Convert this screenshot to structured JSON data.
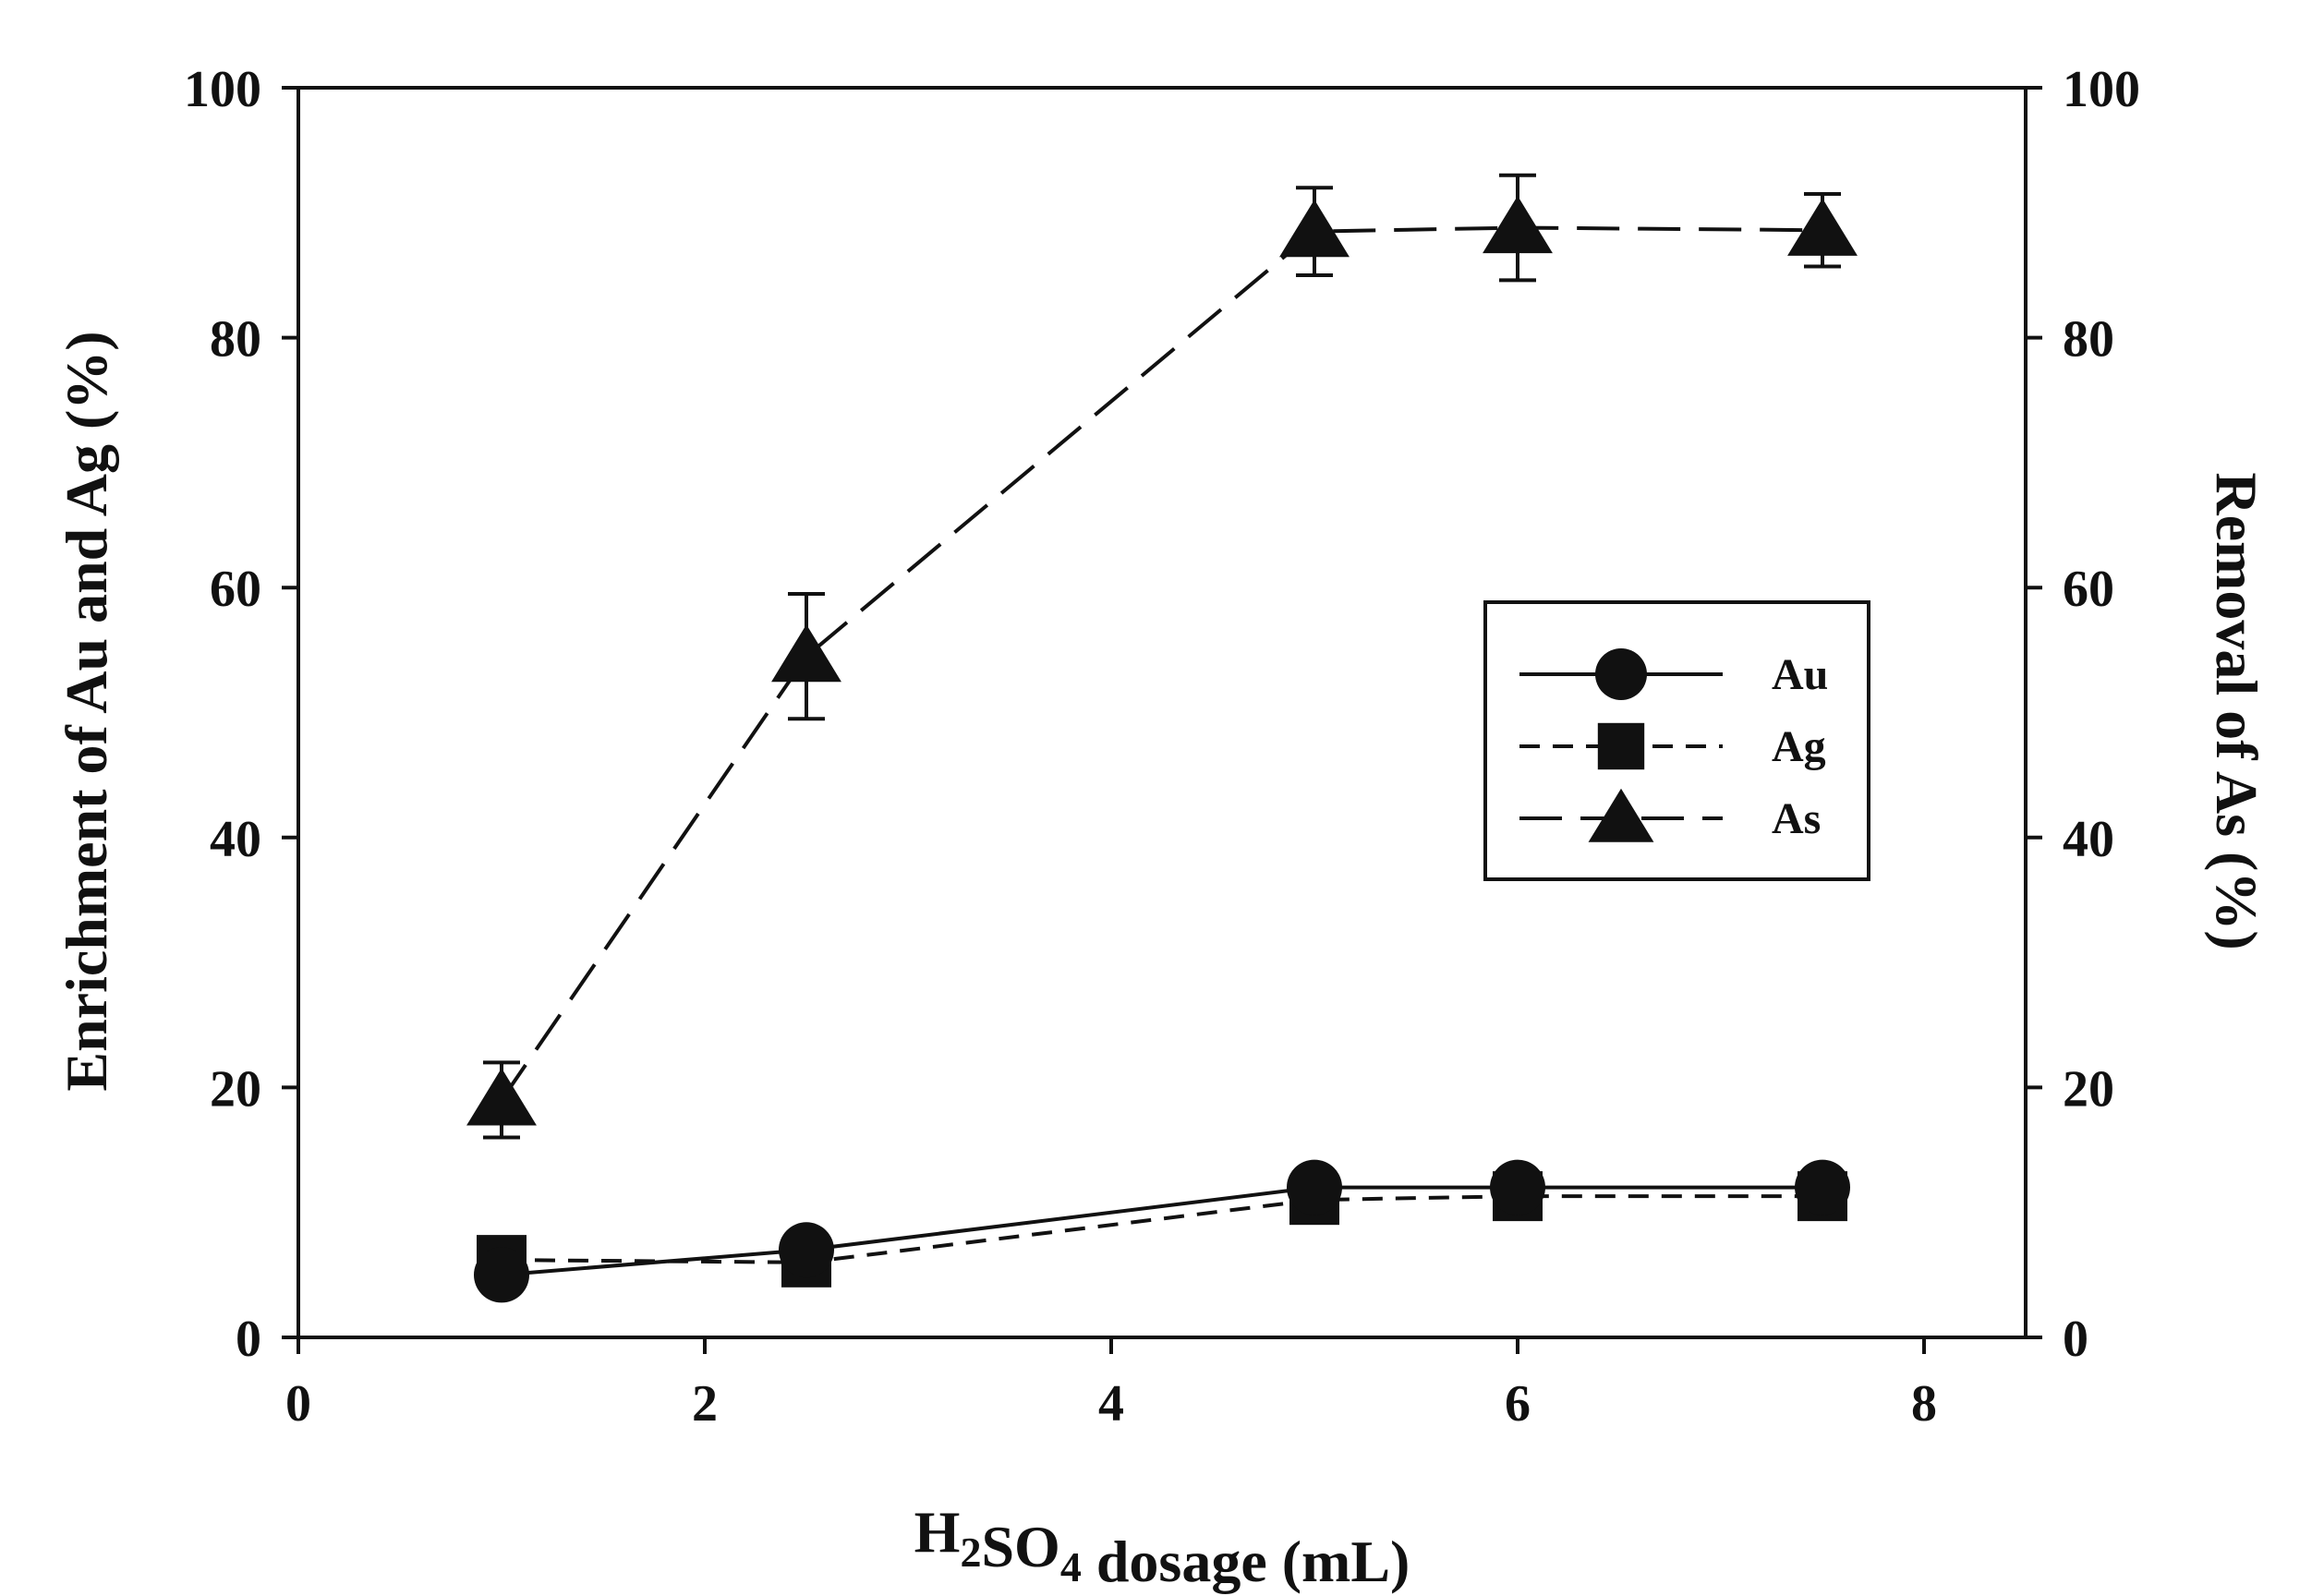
{
  "chart_data": {
    "type": "line",
    "title": "",
    "xlabel": "",
    "xlabel_parts": [
      {
        "text": "H",
        "sub": false
      },
      {
        "text": "2",
        "sub": true
      },
      {
        "text": "SO",
        "sub": false
      },
      {
        "text": "4",
        "sub": true
      },
      {
        "text": " dosage (mL)",
        "sub": false
      }
    ],
    "ylabel": "Enrichment of Au and Ag (%)",
    "y2label": "Removal of As (%)",
    "xlim": [
      0,
      8.5
    ],
    "ylim": [
      0,
      100
    ],
    "y2lim": [
      0,
      100
    ],
    "x_ticks": [
      0,
      2,
      4,
      6,
      8
    ],
    "y_ticks": [
      0,
      20,
      40,
      60,
      80,
      100
    ],
    "y2_ticks": [
      0,
      20,
      40,
      60,
      80,
      100
    ],
    "grid": false,
    "legend_position": "center-right",
    "x": [
      1,
      2.5,
      5,
      6,
      7.5
    ],
    "series": [
      {
        "name": "Au",
        "axis": "left",
        "marker": "circle",
        "line_style": "solid",
        "values": [
          5,
          7,
          12,
          12,
          12
        ]
      },
      {
        "name": "Ag",
        "axis": "left",
        "marker": "square",
        "line_style": "short-dash",
        "values": [
          6.2,
          6,
          11,
          11.3,
          11.3
        ]
      },
      {
        "name": "As",
        "axis": "right",
        "marker": "triangle",
        "line_style": "long-dash",
        "values": [
          19,
          54.5,
          88.5,
          88.8,
          88.6
        ],
        "error": [
          3,
          5,
          3.5,
          4.2,
          2.9
        ]
      }
    ],
    "colors": {
      "marker": "#111111",
      "line": "#111111",
      "background": "#ffffff"
    }
  }
}
